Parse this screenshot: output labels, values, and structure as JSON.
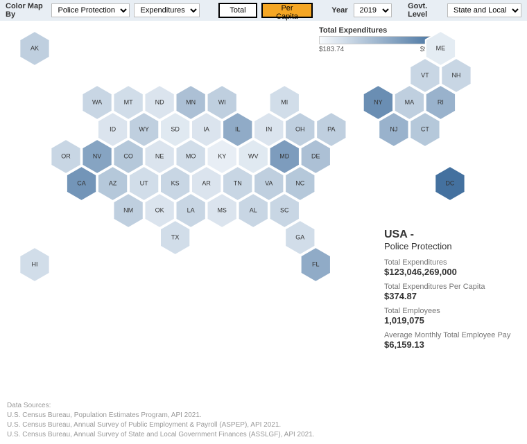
{
  "toolbar": {
    "color_map_by_label": "Color Map By",
    "category_select": "Police Protection",
    "measure_select": "Expenditures",
    "total_btn": "Total",
    "per_capita_btn": "Per Capita",
    "year_label": "Year",
    "year_select": "2019",
    "govt_level_label": "Govt. Level",
    "govt_level_select": "State and Local"
  },
  "legend": {
    "title": "Total Expenditures",
    "min_label": "$183.74",
    "max_label": "$931.17",
    "gradient_start": "#f7fafd",
    "gradient_end": "#3b6a9a"
  },
  "hexmap": {
    "type": "hexmap",
    "background_color": "#ffffff",
    "stroke_color": "#ffffff",
    "stroke_width": 2,
    "hex_radius": 26,
    "label_fontsize": 9,
    "label_color": "#333333",
    "color_scale_min": "#f7fafd",
    "color_scale_max": "#3b6a9a",
    "states": [
      {
        "abbr": "AK",
        "row": 0,
        "col": 0,
        "shade": 0.3
      },
      {
        "abbr": "ME",
        "row": 0,
        "col": 13,
        "shade": 0.1
      },
      {
        "abbr": "VT",
        "row": 1,
        "col": 12,
        "shade": 0.25
      },
      {
        "abbr": "NH",
        "row": 1,
        "col": 13,
        "shade": 0.25
      },
      {
        "abbr": "WA",
        "row": 2,
        "col": 2,
        "shade": 0.25
      },
      {
        "abbr": "MT",
        "row": 2,
        "col": 3,
        "shade": 0.2
      },
      {
        "abbr": "ND",
        "row": 2,
        "col": 4,
        "shade": 0.15
      },
      {
        "abbr": "MN",
        "row": 2,
        "col": 5,
        "shade": 0.4
      },
      {
        "abbr": "WI",
        "row": 2,
        "col": 6,
        "shade": 0.3
      },
      {
        "abbr": "MI",
        "row": 2,
        "col": 8,
        "shade": 0.2
      },
      {
        "abbr": "NY",
        "row": 2,
        "col": 11,
        "shade": 0.75
      },
      {
        "abbr": "MA",
        "row": 2,
        "col": 12,
        "shade": 0.3
      },
      {
        "abbr": "RI",
        "row": 2,
        "col": 13,
        "shade": 0.5
      },
      {
        "abbr": "ID",
        "row": 3,
        "col": 2,
        "shade": 0.15
      },
      {
        "abbr": "WY",
        "row": 3,
        "col": 3,
        "shade": 0.3
      },
      {
        "abbr": "SD",
        "row": 3,
        "col": 4,
        "shade": 0.12
      },
      {
        "abbr": "IA",
        "row": 3,
        "col": 5,
        "shade": 0.15
      },
      {
        "abbr": "IL",
        "row": 3,
        "col": 6,
        "shade": 0.55
      },
      {
        "abbr": "IN",
        "row": 3,
        "col": 7,
        "shade": 0.15
      },
      {
        "abbr": "OH",
        "row": 3,
        "col": 8,
        "shade": 0.3
      },
      {
        "abbr": "PA",
        "row": 3,
        "col": 9,
        "shade": 0.3
      },
      {
        "abbr": "NJ",
        "row": 3,
        "col": 11,
        "shade": 0.5
      },
      {
        "abbr": "CT",
        "row": 3,
        "col": 12,
        "shade": 0.35
      },
      {
        "abbr": "OR",
        "row": 4,
        "col": 1,
        "shade": 0.25
      },
      {
        "abbr": "NV",
        "row": 4,
        "col": 2,
        "shade": 0.6
      },
      {
        "abbr": "CO",
        "row": 4,
        "col": 3,
        "shade": 0.35
      },
      {
        "abbr": "NE",
        "row": 4,
        "col": 4,
        "shade": 0.15
      },
      {
        "abbr": "MO",
        "row": 4,
        "col": 5,
        "shade": 0.2
      },
      {
        "abbr": "KY",
        "row": 4,
        "col": 6,
        "shade": 0.08
      },
      {
        "abbr": "WV",
        "row": 4,
        "col": 7,
        "shade": 0.12
      },
      {
        "abbr": "MD",
        "row": 4,
        "col": 8,
        "shade": 0.65
      },
      {
        "abbr": "DE",
        "row": 4,
        "col": 9,
        "shade": 0.4
      },
      {
        "abbr": "CA",
        "row": 5,
        "col": 1,
        "shade": 0.7
      },
      {
        "abbr": "AZ",
        "row": 5,
        "col": 2,
        "shade": 0.35
      },
      {
        "abbr": "UT",
        "row": 5,
        "col": 3,
        "shade": 0.2
      },
      {
        "abbr": "KS",
        "row": 5,
        "col": 4,
        "shade": 0.25
      },
      {
        "abbr": "AR",
        "row": 5,
        "col": 5,
        "shade": 0.15
      },
      {
        "abbr": "TN",
        "row": 5,
        "col": 6,
        "shade": 0.25
      },
      {
        "abbr": "VA",
        "row": 5,
        "col": 7,
        "shade": 0.3
      },
      {
        "abbr": "NC",
        "row": 5,
        "col": 8,
        "shade": 0.35
      },
      {
        "abbr": "DC",
        "row": 5,
        "col": 12.8,
        "shade": 0.95
      },
      {
        "abbr": "NM",
        "row": 6,
        "col": 3,
        "shade": 0.3
      },
      {
        "abbr": "OK",
        "row": 6,
        "col": 4,
        "shade": 0.15
      },
      {
        "abbr": "LA",
        "row": 6,
        "col": 5,
        "shade": 0.25
      },
      {
        "abbr": "MS",
        "row": 6,
        "col": 6,
        "shade": 0.15
      },
      {
        "abbr": "AL",
        "row": 6,
        "col": 7,
        "shade": 0.25
      },
      {
        "abbr": "SC",
        "row": 6,
        "col": 8,
        "shade": 0.25
      },
      {
        "abbr": "TX",
        "row": 7,
        "col": 4,
        "shade": 0.2
      },
      {
        "abbr": "GA",
        "row": 7,
        "col": 8,
        "shade": 0.2
      },
      {
        "abbr": "HI",
        "row": 8,
        "col": 0,
        "shade": 0.2
      },
      {
        "abbr": "FL",
        "row": 8,
        "col": 9,
        "shade": 0.55
      }
    ]
  },
  "info": {
    "title": "USA -",
    "subtitle": "Police Protection",
    "metrics": [
      {
        "label": "Total Expenditures",
        "value": "$123,046,269,000"
      },
      {
        "label": "Total Expenditures Per Capita",
        "value": "$374.87"
      },
      {
        "label": "Total Employees",
        "value": "1,019,075"
      },
      {
        "label": "Average Monthly Total Employee Pay",
        "value": "$6,159.13"
      }
    ]
  },
  "footer": {
    "heading": "Data Sources:",
    "lines": [
      "U.S. Census Bureau, Population Estimates Program, API 2021.",
      "U.S. Census Bureau, Annual Survey of Public Employment & Payroll (ASPEP), API 2021.",
      "U.S. Census Bureau, Annual Survey of State and Local Government Finances (ASSLGF), API 2021."
    ]
  }
}
